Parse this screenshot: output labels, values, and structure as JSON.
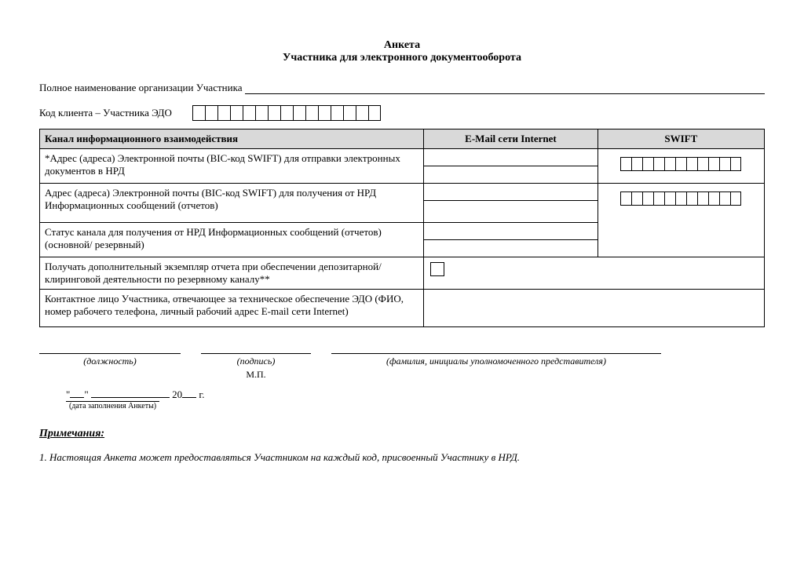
{
  "title": "Анкета",
  "subtitle": "Участника для электронного документооборота",
  "full_name_label": "Полное наименование организации Участника",
  "client_code_label": "Код клиента – Участника ЭДО",
  "client_code_cells": 15,
  "table": {
    "headers": {
      "channel": "Канал информационного взаимодействия",
      "email": "E-Mail сети Internet",
      "swift": "SWIFT"
    },
    "swift_cells": 11,
    "row_send": "*Адрес (адреса) Электронной почты (BIC-код SWIFT) для отправки электронных документов в НРД",
    "row_receive": "Адрес (адреса) Электронной почты (BIC-код SWIFT) для получения от НРД Информационных сообщений (отчетов)",
    "row_status": "Статус канала для получения от НРД Информационных сообщений (отчетов) (основной/ резервный)",
    "row_extra": "Получать дополнительный экземпляр отчета при обеспечении депозитарной/клиринговой деятельности по резервному каналу**",
    "row_contact": "Контактное лицо Участника, отвечающее за техническое обеспечение ЭДО (ФИО, номер рабочего телефона, личный рабочий адрес E-mail сети Internet)"
  },
  "signatures": {
    "position": "(должность)",
    "sign": "(подпись)",
    "fio": "(фамилия, инициалы уполномоченного представителя)",
    "mp": "М.П."
  },
  "date": {
    "quote_open": "\"",
    "quote_close": "\"",
    "year_prefix": "20",
    "year_suffix": "г.",
    "caption": "(дата заполнения Анкеты)"
  },
  "notes": {
    "heading": "Примечания:",
    "n1": "1. Настоящая Анкета может предоставляться Участником на каждый код, присвоенный Участнику в НРД."
  }
}
